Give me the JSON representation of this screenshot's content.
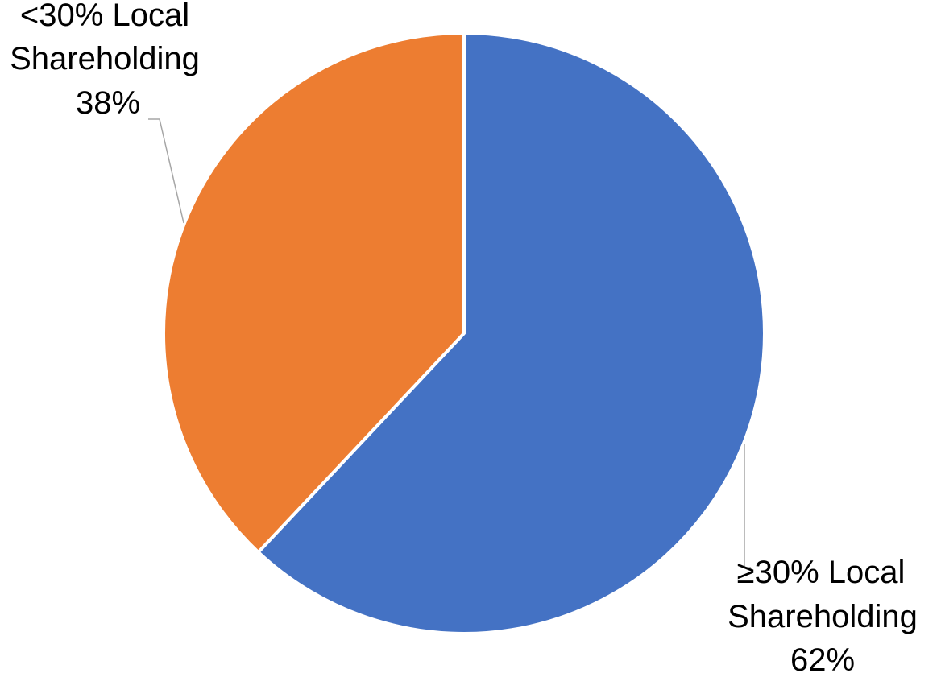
{
  "chart_data": {
    "type": "pie",
    "title": "",
    "slices": [
      {
        "label_line1": "≥30% Local",
        "label_line2": "Shareholding",
        "percent_label": "62%",
        "value": 62,
        "color": "#4472C4"
      },
      {
        "label_line1": "<30% Local",
        "label_line2": "Shareholding",
        "percent_label": "38%",
        "value": 38,
        "color": "#ED7D31"
      }
    ],
    "legend": "none",
    "start_angle_deg": 0,
    "direction": "clockwise",
    "leader_line_color": "#A6A6A6"
  }
}
